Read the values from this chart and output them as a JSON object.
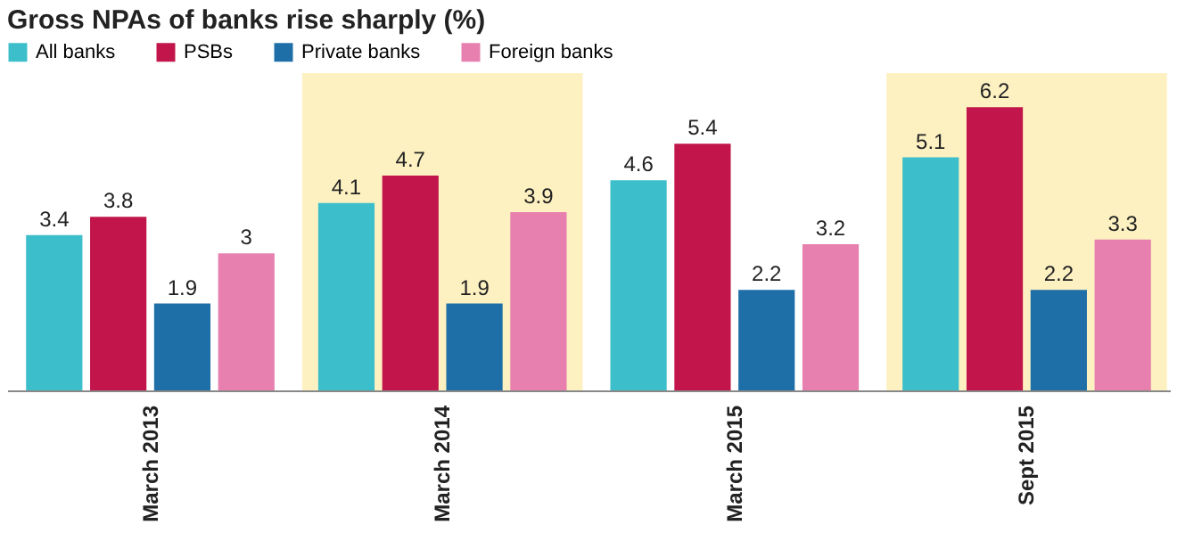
{
  "chart_data": {
    "type": "bar",
    "title": "Gross NPAs of banks rise sharply (%)",
    "categories": [
      "March 2013",
      "March 2014",
      "March 2015",
      "Sept 2015"
    ],
    "series": [
      {
        "name": "All banks",
        "color": "#3cbfca",
        "values": [
          3.4,
          4.1,
          4.6,
          5.1
        ]
      },
      {
        "name": "PSBs",
        "color": "#c1154b",
        "values": [
          3.8,
          4.7,
          5.4,
          6.2
        ]
      },
      {
        "name": "Private banks",
        "color": "#1e6ea7",
        "values": [
          1.9,
          1.9,
          2.2,
          2.2
        ]
      },
      {
        "name": "Foreign banks",
        "color": "#e780ae",
        "values": [
          3,
          3.9,
          3.2,
          3.3
        ]
      }
    ],
    "bands": [
      {
        "axis": "x",
        "from": "March 2014",
        "to": "March 2014",
        "color": "#fdf1c2"
      },
      {
        "axis": "x",
        "from": "Sept 2015",
        "to": "Sept 2015",
        "color": "#fdf1c2"
      }
    ],
    "data_labels": true,
    "legend": "top left",
    "grid": false
  }
}
